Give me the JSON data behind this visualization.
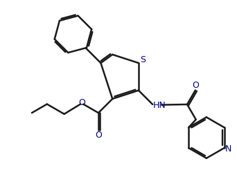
{
  "background_color": "#ffffff",
  "line_color": "#1a1a1a",
  "heteroatom_color": "#000080",
  "bond_width": 1.8,
  "figsize": [
    3.42,
    2.69
  ],
  "dpi": 100,
  "xlim": [
    0,
    10
  ],
  "ylim": [
    0,
    7.9
  ]
}
